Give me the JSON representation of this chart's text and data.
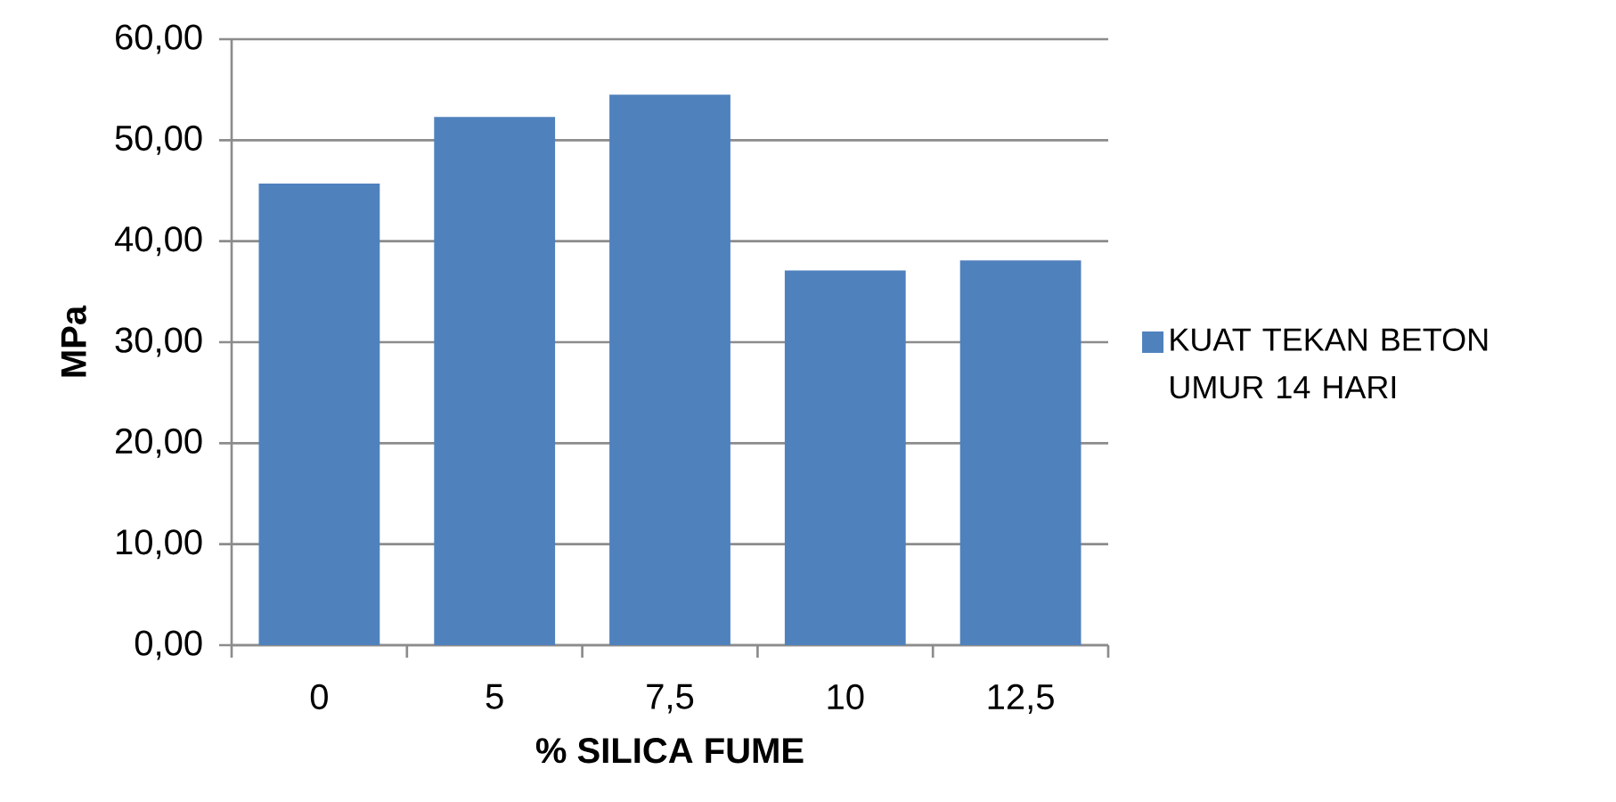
{
  "chart_data": {
    "type": "bar",
    "xlabel": "% SILICA FUME",
    "ylabel": "MPa",
    "categories": [
      "0",
      "5",
      "7,5",
      "10",
      "12,5"
    ],
    "series": [
      {
        "name": "KUAT TEKAN BETON UMUR 14  HARI",
        "color": "#4f81bd",
        "values": [
          45.7,
          52.3,
          54.5,
          37.1,
          38.1
        ]
      }
    ],
    "ylim": [
      0,
      60
    ],
    "yticks": [
      {
        "value": 0,
        "label": "0,00"
      },
      {
        "value": 10,
        "label": "10,00"
      },
      {
        "value": 20,
        "label": "20,00"
      },
      {
        "value": 30,
        "label": "30,00"
      },
      {
        "value": 40,
        "label": "40,00"
      },
      {
        "value": 50,
        "label": "50,00"
      },
      {
        "value": 60,
        "label": "60,00"
      }
    ],
    "grid": "y",
    "legend": "right"
  }
}
